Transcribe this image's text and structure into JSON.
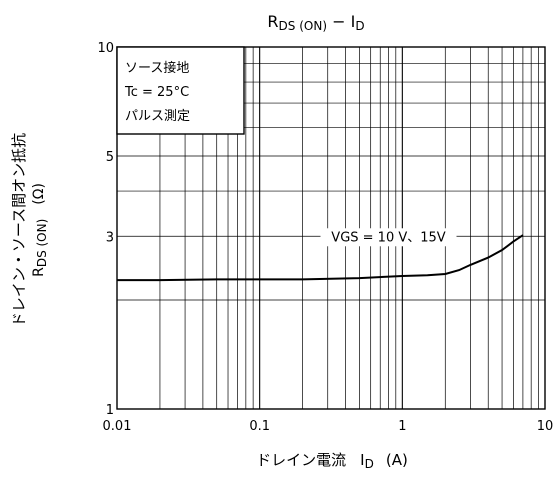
{
  "chart_data": {
    "type": "line",
    "title": "R",
    "title_sub": "DS (ON)",
    "title_dash": " − I",
    "title_sub2": "D",
    "xlabel_main": "ドレイン電流",
    "xlabel_symbol": "I",
    "xlabel_symbol_sub": "D",
    "xlabel_unit": "(A)",
    "ylabel_main": "ドレイン・ソース間オン抵抗",
    "ylabel_symbol": "R",
    "ylabel_symbol_sub": "DS (ON)",
    "ylabel_unit": "(Ω)",
    "x_scale": "log",
    "y_scale": "log",
    "xlim": [
      0.01,
      10
    ],
    "ylim": [
      1,
      10
    ],
    "x_ticks": [
      {
        "value": 0.01,
        "label": "0.01"
      },
      {
        "value": 0.1,
        "label": "0.1"
      },
      {
        "value": 1,
        "label": "1"
      },
      {
        "value": 10,
        "label": "10"
      }
    ],
    "y_ticks": [
      {
        "value": 1,
        "label": "1"
      },
      {
        "value": 3,
        "label": "3"
      },
      {
        "value": 5,
        "label": "5"
      },
      {
        "value": 10,
        "label": "10"
      }
    ],
    "grid": true,
    "legend_box": {
      "position": "top-left",
      "lines": [
        "ソース接地",
        "Tc = 25°C",
        "パルス測定"
      ]
    },
    "annotation": "VGS = 10 V、15V",
    "series": [
      {
        "x": [
          0.01,
          0.02,
          0.05,
          0.1,
          0.2,
          0.5,
          1,
          1.5,
          2,
          2.5,
          3,
          4,
          5,
          6,
          7
        ],
        "y": [
          2.27,
          2.27,
          2.28,
          2.28,
          2.28,
          2.3,
          2.33,
          2.34,
          2.36,
          2.42,
          2.5,
          2.62,
          2.75,
          2.9,
          3.02
        ]
      }
    ]
  }
}
